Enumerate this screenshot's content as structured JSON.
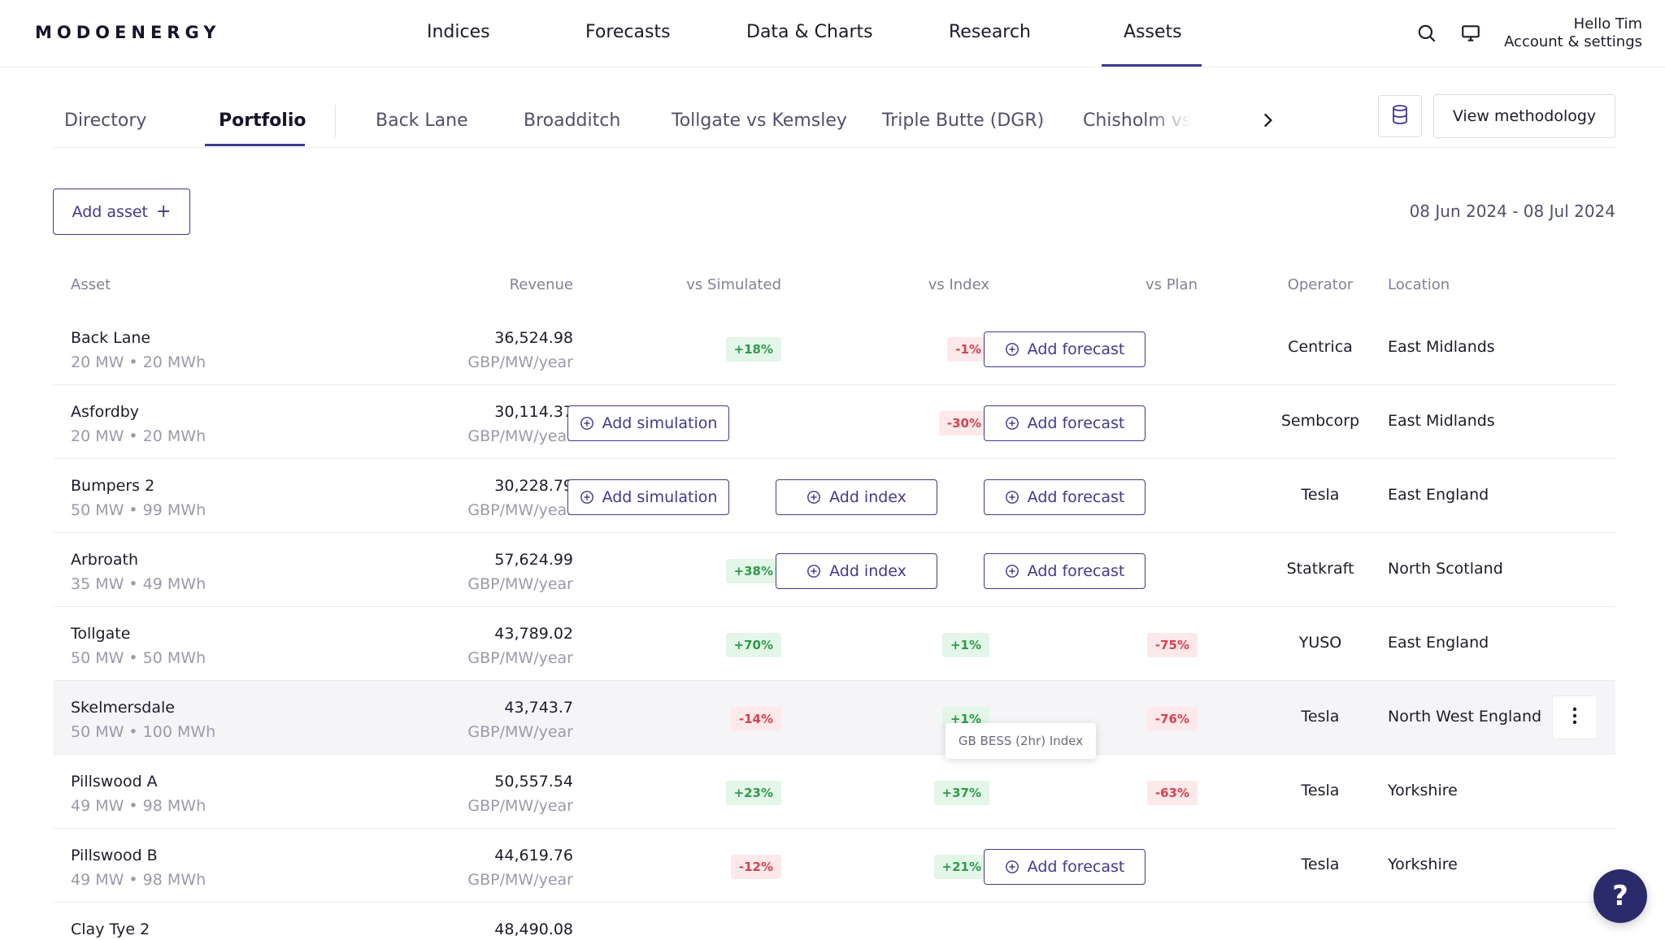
{
  "brand": {
    "logo": "MODOENERGY"
  },
  "topnav": {
    "items": [
      "Indices",
      "Forecasts",
      "Data & Charts",
      "Research",
      "Assets"
    ],
    "active": "Assets",
    "greeting": "Hello Tim",
    "account": "Account & settings",
    "icons": [
      "search-icon",
      "monitor-icon"
    ]
  },
  "subtabs": {
    "items": [
      "Directory",
      "Portfolio",
      "Back Lane",
      "Broadditch",
      "Tollgate vs Kemsley",
      "Triple Butte (DGR)",
      "Chisholm vs"
    ],
    "active": "Portfolio",
    "methodology_label": "View methodology"
  },
  "toolbar": {
    "add_asset_label": "Add asset",
    "add_asset_symbol": "+",
    "date_range": "08 Jun 2024 - 08 Jul 2024"
  },
  "table": {
    "headers": {
      "asset": "Asset",
      "revenue": "Revenue",
      "vs_simulated": "vs Simulated",
      "vs_index": "vs Index",
      "vs_plan": "vs Plan",
      "operator": "Operator",
      "location": "Location"
    },
    "rows": [
      {
        "name": "Back Lane",
        "capacity": "20 MW • 20 MWh",
        "revenue": "36,524.98",
        "unit": "GBP/MW/year",
        "vs_simulated": "+18%",
        "vs_index": "-1%",
        "vs_plan": "Add forecast",
        "operator": "Centrica",
        "location": "East Midlands"
      },
      {
        "name": "Asfordby",
        "capacity": "20 MW • 20 MWh",
        "revenue": "30,114.37",
        "unit": "GBP/MW/year",
        "vs_simulated": "Add simulation",
        "vs_index": "-30%",
        "vs_plan": "Add forecast",
        "operator": "Sembcorp",
        "location": "East Midlands"
      },
      {
        "name": "Bumpers 2",
        "capacity": "50 MW • 99 MWh",
        "revenue": "30,228.79",
        "unit": "GBP/MW/year",
        "vs_simulated": "Add simulation",
        "vs_index": "Add index",
        "vs_plan": "Add forecast",
        "operator": "Tesla",
        "location": "East England"
      },
      {
        "name": "Arbroath",
        "capacity": "35 MW • 49 MWh",
        "revenue": "57,624.99",
        "unit": "GBP/MW/year",
        "vs_simulated": "+38%",
        "vs_index": "Add index",
        "vs_plan": "Add forecast",
        "operator": "Statkraft",
        "location": "North Scotland"
      },
      {
        "name": "Tollgate",
        "capacity": "50 MW • 50 MWh",
        "revenue": "43,789.02",
        "unit": "GBP/MW/year",
        "vs_simulated": "+70%",
        "vs_index": "+1%",
        "vs_plan": "-75%",
        "operator": "YUSO",
        "location": "East England"
      },
      {
        "name": "Skelmersdale",
        "capacity": "50 MW • 100 MWh",
        "revenue": "43,743.7",
        "unit": "GBP/MW/year",
        "vs_simulated": "-14%",
        "vs_index": "+1%",
        "vs_plan": "-76%",
        "operator": "Tesla",
        "location": "North West England"
      },
      {
        "name": "Pillswood A",
        "capacity": "49 MW • 98 MWh",
        "revenue": "50,557.54",
        "unit": "GBP/MW/year",
        "vs_simulated": "+23%",
        "vs_index": "+37%",
        "vs_plan": "-63%",
        "operator": "Tesla",
        "location": "Yorkshire"
      },
      {
        "name": "Pillswood B",
        "capacity": "49 MW • 98 MWh",
        "revenue": "44,619.76",
        "unit": "GBP/MW/year",
        "vs_simulated": "-12%",
        "vs_index": "+21%",
        "vs_plan": "Add forecast",
        "operator": "Tesla",
        "location": "Yorkshire"
      },
      {
        "name": "Clay Tye 2",
        "capacity": "",
        "revenue": "48,490.08",
        "unit": "",
        "vs_simulated": "",
        "vs_index": "",
        "vs_plan": "",
        "operator": "",
        "location": ""
      }
    ]
  },
  "tooltip": {
    "text": "GB BESS (2hr) Index"
  },
  "help": {
    "symbol": "?"
  },
  "colors": {
    "accent": "#3f3a8f",
    "positive": "#2e9a4a",
    "negative": "#d4424f",
    "help": "#2b2a6b"
  }
}
